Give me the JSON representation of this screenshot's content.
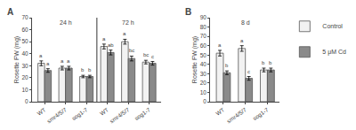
{
  "chart_data": [
    {
      "type": "bar",
      "title": "A",
      "ylabel": "Rosette FW (mg)",
      "categories": [
        "WT",
        "smr4/5/7",
        "sog1-7",
        "WT",
        "smr4/5/7",
        "sog1-7"
      ],
      "group_labels": [
        "24 h",
        "24 h",
        "24 h",
        "72 h",
        "72 h",
        "72 h"
      ],
      "series": [
        {
          "name": "Control",
          "color": "#f2f2f2",
          "values": [
            32,
            28,
            21,
            46,
            50,
            33
          ],
          "errors": [
            2,
            1.5,
            1,
            2,
            2,
            1.5
          ],
          "letters": [
            "a",
            "a",
            "b",
            "a",
            "a",
            "bc"
          ]
        },
        {
          "name": "5 μM Cd",
          "color": "#8a8a8a",
          "values": [
            26,
            28,
            21,
            41,
            36,
            32
          ],
          "errors": [
            1.5,
            1.5,
            1,
            2,
            2,
            1.5
          ],
          "letters": [
            "a",
            "a",
            "b",
            "ab",
            "bc",
            "c"
          ]
        }
      ],
      "ylim": [
        0,
        70
      ],
      "yticks": [
        0,
        10,
        20,
        30,
        40,
        50,
        60,
        70
      ],
      "grid": false
    },
    {
      "type": "bar",
      "title": "B",
      "ylabel": "Rosette FW (mg)",
      "categories": [
        "WT",
        "smr4/5/7",
        "sog1-7"
      ],
      "group_labels": [
        "8 d",
        "8 d",
        "8 d"
      ],
      "series": [
        {
          "name": "Control",
          "color": "#f2f2f2",
          "values": [
            52,
            57,
            34
          ],
          "errors": [
            3,
            3,
            2
          ],
          "letters": [
            "a",
            "a",
            "b"
          ]
        },
        {
          "name": "5 μM Cd",
          "color": "#8a8a8a",
          "values": [
            31,
            25,
            34
          ],
          "errors": [
            2,
            2,
            2
          ],
          "letters": [
            "b",
            "c",
            "b"
          ]
        }
      ],
      "ylim": [
        0,
        90
      ],
      "yticks": [
        0,
        10,
        20,
        30,
        40,
        50,
        60,
        70,
        80,
        90
      ],
      "grid": false
    }
  ]
}
